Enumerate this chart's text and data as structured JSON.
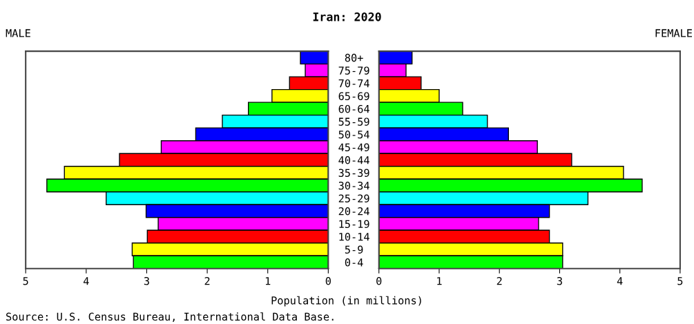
{
  "chart_data": [
    {
      "type": "bar",
      "orientation": "horizontal",
      "title": "MALE",
      "xlabel": "Population (in millions)",
      "annotations": [
        "Iran: 2020",
        "Source: U.S. Census Bureau, International Data Base."
      ],
      "categories": [
        null,
        null,
        null,
        null,
        null,
        null,
        null,
        null,
        null,
        null,
        null,
        null,
        null,
        null,
        null,
        null,
        null
      ],
      "values": [
        0.46,
        0.38,
        0.64,
        0.93,
        1.32,
        1.75,
        2.19,
        2.76,
        3.45,
        4.36,
        4.65,
        3.67,
        3.01,
        2.81,
        2.99,
        3.24,
        3.22
      ],
      "colors": [
        "#0000ff",
        "#ff00ff",
        "#ff0000",
        "#ffff00",
        "#00ff00",
        "#00ffff",
        "#0000ff",
        "#ff00ff",
        "#ff0000",
        "#ffff00",
        "#00ff00",
        "#00ffff",
        "#0000ff",
        "#ff00ff",
        "#ff0000",
        "#ffff00",
        "#00ff00"
      ],
      "xlim": [
        5,
        0
      ],
      "xticks": [
        5,
        4,
        3,
        2,
        1,
        0
      ],
      "tick_labels": "x",
      "grid": false,
      "legend": false
    },
    {
      "type": "bar",
      "orientation": "horizontal",
      "title": "FEMALE",
      "categories": [
        "80+",
        "75-79",
        "70-74",
        "65-69",
        "60-64",
        "55-59",
        "50-54",
        "45-49",
        "40-44",
        "35-39",
        "30-34",
        "25-29",
        "20-24",
        "15-19",
        "10-14",
        "5-9",
        "0-4"
      ],
      "values": [
        0.55,
        0.45,
        0.7,
        1.0,
        1.39,
        1.8,
        2.15,
        2.63,
        3.2,
        4.06,
        4.37,
        3.47,
        2.83,
        2.65,
        2.83,
        3.05,
        3.05
      ],
      "colors": [
        "#0000ff",
        "#ff00ff",
        "#ff0000",
        "#ffff00",
        "#00ff00",
        "#00ffff",
        "#0000ff",
        "#ff00ff",
        "#ff0000",
        "#ffff00",
        "#00ff00",
        "#00ffff",
        "#0000ff",
        "#ff00ff",
        "#ff0000",
        "#ffff00",
        "#00ff00"
      ],
      "xlim": [
        0,
        5
      ],
      "xticks": [
        0,
        1,
        2,
        3,
        4,
        5
      ],
      "grid": false,
      "legend": false
    }
  ]
}
